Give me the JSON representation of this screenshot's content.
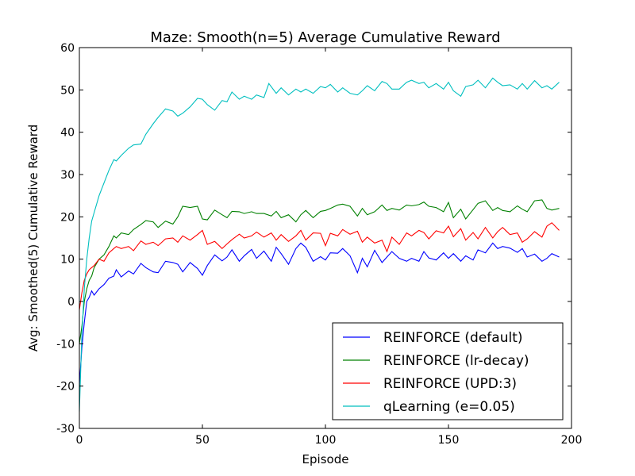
{
  "chart_data": {
    "type": "line",
    "title": "Maze: Smooth(n=5) Average Cumulative Reward",
    "xlabel": "Episode",
    "ylabel": "Avg: Smoothed(5) Cumulative Reward",
    "xlim": [
      0,
      200
    ],
    "ylim": [
      -30,
      60
    ],
    "xticks": [
      0,
      50,
      100,
      150,
      200
    ],
    "yticks": [
      -30,
      -20,
      -10,
      0,
      10,
      20,
      30,
      40,
      50,
      60
    ],
    "grid": false,
    "legend_position": "bottom-right",
    "series": [
      {
        "name": "REINFORCE (default)",
        "color": "#0000ff",
        "x": [
          0,
          1,
          2,
          3,
          4,
          5,
          6,
          8,
          10,
          12,
          14,
          15,
          17,
          20,
          22,
          25,
          27,
          30,
          32,
          35,
          38,
          40,
          42,
          45,
          48,
          50,
          52,
          55,
          58,
          60,
          62,
          65,
          67,
          70,
          72,
          75,
          78,
          80,
          82,
          85,
          88,
          90,
          92,
          95,
          98,
          100,
          102,
          105,
          107,
          110,
          113,
          115,
          117,
          120,
          123,
          125,
          127,
          130,
          133,
          135,
          138,
          140,
          142,
          145,
          148,
          150,
          152,
          155,
          157,
          160,
          162,
          165,
          168,
          170,
          172,
          175,
          178,
          180,
          182,
          185,
          188,
          190,
          192,
          195
        ],
        "values": [
          -20,
          -11,
          -5,
          0,
          1,
          2.5,
          1.5,
          3,
          4,
          5.5,
          6,
          7.5,
          5.8,
          7.2,
          6.5,
          9,
          8,
          7,
          6.8,
          9.5,
          9.2,
          8.8,
          7,
          9.2,
          7.8,
          6.2,
          8.5,
          11,
          9.6,
          10.5,
          12.2,
          9.5,
          10.8,
          12.3,
          10.2,
          11.9,
          9.5,
          12.8,
          11.3,
          8.8,
          12.5,
          13.8,
          12.8,
          9.5,
          10.6,
          9.8,
          11.5,
          11.4,
          12.5,
          10.8,
          6.8,
          10.2,
          8.2,
          12.1,
          9.2,
          10.5,
          11.8,
          10.2,
          9.5,
          10.2,
          9.5,
          11.8,
          10.3,
          9.8,
          11.5,
          10.2,
          11.3,
          9.5,
          10.8,
          9.8,
          12.2,
          11.5,
          13.8,
          12.5,
          13,
          12.6,
          11.6,
          12.5,
          10.5,
          11.2,
          9.5,
          10.2,
          11.3,
          10.5
        ]
      },
      {
        "name": "REINFORCE (lr-decay)",
        "color": "#008000",
        "x": [
          0,
          1,
          2,
          3,
          4,
          5,
          6,
          8,
          10,
          12,
          14,
          15,
          17,
          20,
          22,
          25,
          27,
          30,
          32,
          35,
          38,
          40,
          42,
          45,
          48,
          50,
          52,
          55,
          58,
          60,
          62,
          65,
          67,
          70,
          72,
          75,
          78,
          80,
          82,
          85,
          88,
          90,
          92,
          95,
          98,
          100,
          102,
          105,
          107,
          110,
          113,
          115,
          117,
          120,
          123,
          125,
          127,
          130,
          133,
          135,
          138,
          140,
          142,
          145,
          148,
          150,
          152,
          155,
          157,
          160,
          162,
          165,
          168,
          170,
          172,
          175,
          178,
          180,
          182,
          185,
          188,
          190,
          192,
          195
        ],
        "values": [
          -10,
          -6,
          0,
          3,
          5,
          6,
          8,
          10,
          11,
          13,
          15.5,
          15,
          16.2,
          15.8,
          17,
          18.2,
          19.1,
          18.8,
          17.5,
          19,
          18.3,
          20,
          22.5,
          22.2,
          22.5,
          19.5,
          19.3,
          21.6,
          20.5,
          19.8,
          21.3,
          21.2,
          20.8,
          21.2,
          20.8,
          20.8,
          20.2,
          21.3,
          19.8,
          20.5,
          18.8,
          20.5,
          21.5,
          19.8,
          21.3,
          21.5,
          22,
          22.8,
          23,
          22.5,
          20.2,
          22,
          20.5,
          21.2,
          22.8,
          21.5,
          22,
          21.6,
          22.8,
          22.6,
          22.9,
          23.5,
          22.5,
          22.2,
          21.2,
          23.4,
          19.8,
          21.8,
          19.5,
          21.7,
          23.2,
          23.8,
          21.5,
          22.2,
          21.5,
          21.2,
          22.6,
          21.8,
          21.2,
          23.8,
          24,
          22,
          21.6,
          22
        ]
      },
      {
        "name": "REINFORCE (UPD:3)",
        "color": "#ff0000",
        "x": [
          0,
          1,
          2,
          3,
          4,
          5,
          6,
          8,
          10,
          12,
          14,
          15,
          17,
          20,
          22,
          25,
          27,
          30,
          32,
          35,
          38,
          40,
          42,
          45,
          48,
          50,
          52,
          55,
          58,
          60,
          62,
          65,
          67,
          70,
          72,
          75,
          78,
          80,
          82,
          85,
          88,
          90,
          92,
          95,
          98,
          100,
          102,
          105,
          107,
          110,
          113,
          115,
          117,
          120,
          123,
          125,
          127,
          130,
          133,
          135,
          138,
          140,
          142,
          145,
          148,
          150,
          152,
          155,
          157,
          160,
          162,
          165,
          168,
          170,
          172,
          175,
          178,
          180,
          182,
          185,
          188,
          190,
          192,
          195
        ],
        "values": [
          -2,
          2,
          5,
          6.5,
          7.5,
          8,
          8.5,
          10,
          9.5,
          11.5,
          12.5,
          13,
          12.5,
          13,
          12,
          14.3,
          13.5,
          14,
          13.2,
          14.8,
          15,
          14,
          15.5,
          14.5,
          15.8,
          16.8,
          13.5,
          14.2,
          12.5,
          13.6,
          14.6,
          15.9,
          15,
          15.5,
          16.4,
          15.2,
          16.2,
          14.5,
          15.8,
          14.2,
          15.5,
          16.8,
          14.5,
          16.2,
          16.1,
          13.2,
          16.1,
          15.5,
          17,
          15.9,
          16.6,
          14,
          15.2,
          13.8,
          14.5,
          11.8,
          15.2,
          13.5,
          16.2,
          15.5,
          16.8,
          16.3,
          14.8,
          16.7,
          16.2,
          17.8,
          15.3,
          17.2,
          14.5,
          16.3,
          14.8,
          17.5,
          15,
          16.5,
          17.5,
          15.8,
          16.2,
          14,
          14.8,
          16.5,
          15.2,
          17.8,
          18.6,
          16.8
        ]
      },
      {
        "name": "qLearning (e=0.05)",
        "color": "#00bfbf",
        "x": [
          0,
          1,
          2,
          3,
          4,
          5,
          6,
          8,
          10,
          12,
          14,
          15,
          17,
          20,
          22,
          25,
          27,
          30,
          32,
          35,
          38,
          40,
          42,
          45,
          48,
          50,
          52,
          55,
          58,
          60,
          62,
          65,
          67,
          70,
          72,
          75,
          77,
          80,
          82,
          85,
          88,
          90,
          92,
          95,
          98,
          100,
          102,
          105,
          107,
          110,
          113,
          115,
          117,
          120,
          123,
          125,
          127,
          130,
          133,
          135,
          138,
          140,
          142,
          145,
          148,
          150,
          152,
          155,
          157,
          160,
          162,
          165,
          168,
          170,
          172,
          175,
          178,
          180,
          182,
          185,
          188,
          190,
          192,
          195
        ],
        "values": [
          -26,
          -8,
          3,
          10,
          15,
          19,
          21,
          25,
          28,
          31,
          33.5,
          33.2,
          34.5,
          36.2,
          37,
          37.2,
          39.5,
          42,
          43.5,
          45.5,
          45,
          43.8,
          44.5,
          46,
          48,
          47.8,
          46.5,
          45.2,
          47.5,
          47.2,
          49.5,
          47.8,
          48.5,
          47.8,
          48.8,
          48.2,
          51.5,
          49.2,
          50.5,
          48.8,
          50.2,
          49.5,
          50.2,
          49.2,
          50.8,
          50.5,
          51.3,
          49.5,
          50.5,
          49.2,
          48.8,
          49.8,
          51,
          49.8,
          52,
          51.5,
          50.2,
          50.2,
          51.8,
          52.3,
          51.5,
          51.8,
          50.5,
          51.5,
          50.2,
          51.8,
          49.8,
          48.5,
          50.8,
          51.2,
          52.3,
          50.5,
          52.8,
          51.8,
          51,
          51.2,
          50.2,
          51.5,
          50.2,
          52.2,
          50.5,
          51,
          50.2,
          51.8
        ]
      }
    ]
  }
}
